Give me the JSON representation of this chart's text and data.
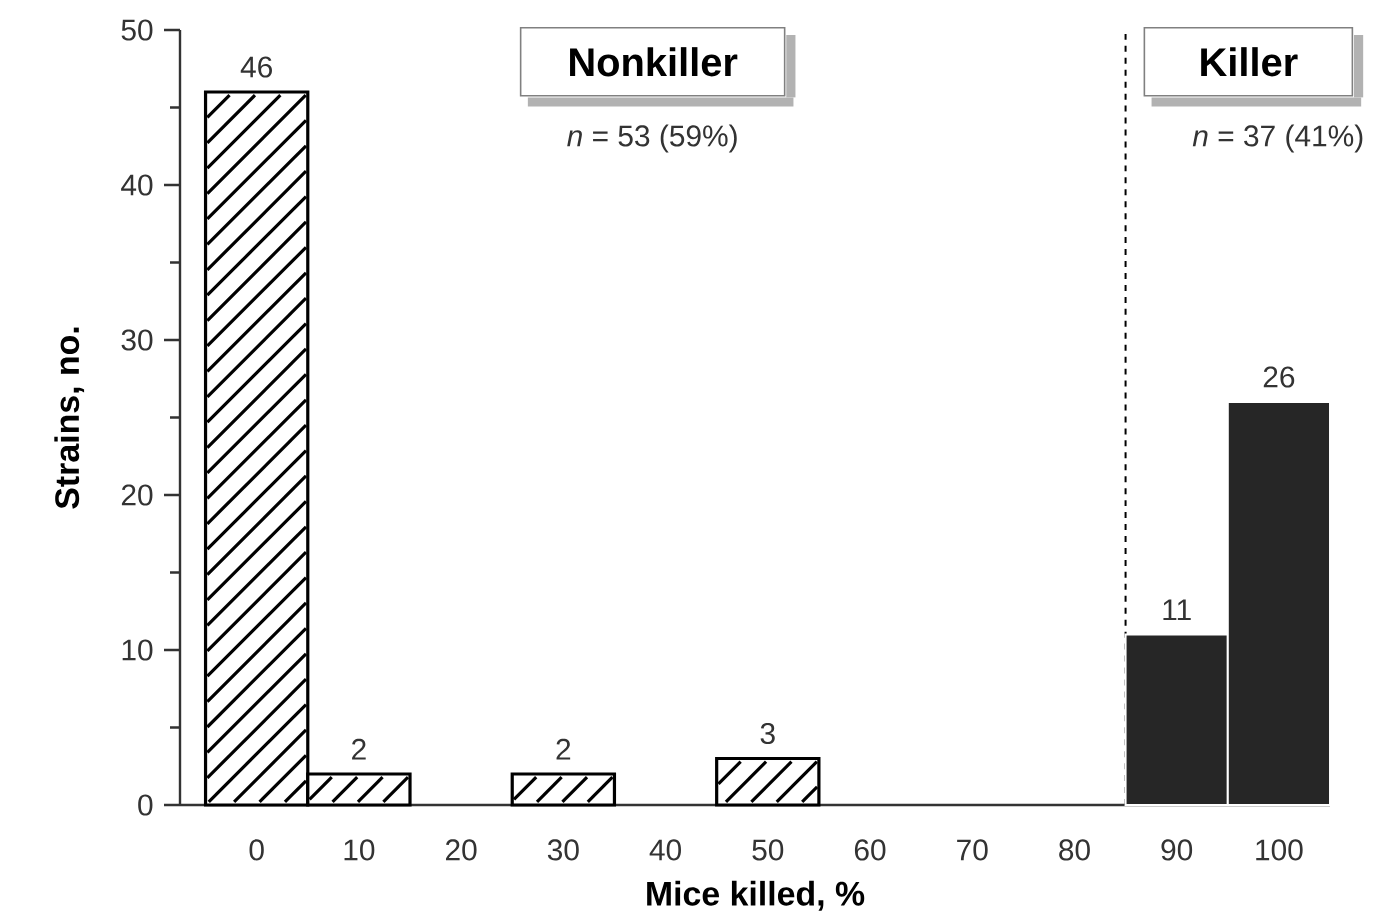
{
  "chart_data": {
    "type": "bar",
    "xlabel": "Mice killed, %",
    "ylabel": "Strains, no.",
    "x": [
      0,
      10,
      20,
      30,
      40,
      50,
      60,
      70,
      80,
      90,
      100
    ],
    "series": [
      {
        "color": "#000000",
        "values": [
          46,
          2,
          null,
          2,
          null,
          3,
          null,
          null,
          null,
          null,
          null
        ]
      },
      {
        "color": "#262626",
        "values": [
          null,
          null,
          null,
          null,
          null,
          null,
          null,
          null,
          null,
          11,
          26
        ]
      }
    ],
    "xlim": [
      -7.5,
      105
    ],
    "xticks": [
      0,
      10,
      20,
      30,
      40,
      50,
      60,
      70,
      80,
      90,
      100
    ],
    "ylim": [
      0,
      50
    ],
    "yticks": [
      0,
      10,
      20,
      30,
      40,
      50
    ],
    "data_labels": true,
    "ref_lines": [
      {
        "axis": "x",
        "value": 85,
        "color": "#000000",
        "line_style": "dashed"
      }
    ],
    "annotations": [
      "Nonkiller",
      "*n* = 53 (59%)",
      "Killer",
      "*n* = 37 (41%)"
    ]
  }
}
